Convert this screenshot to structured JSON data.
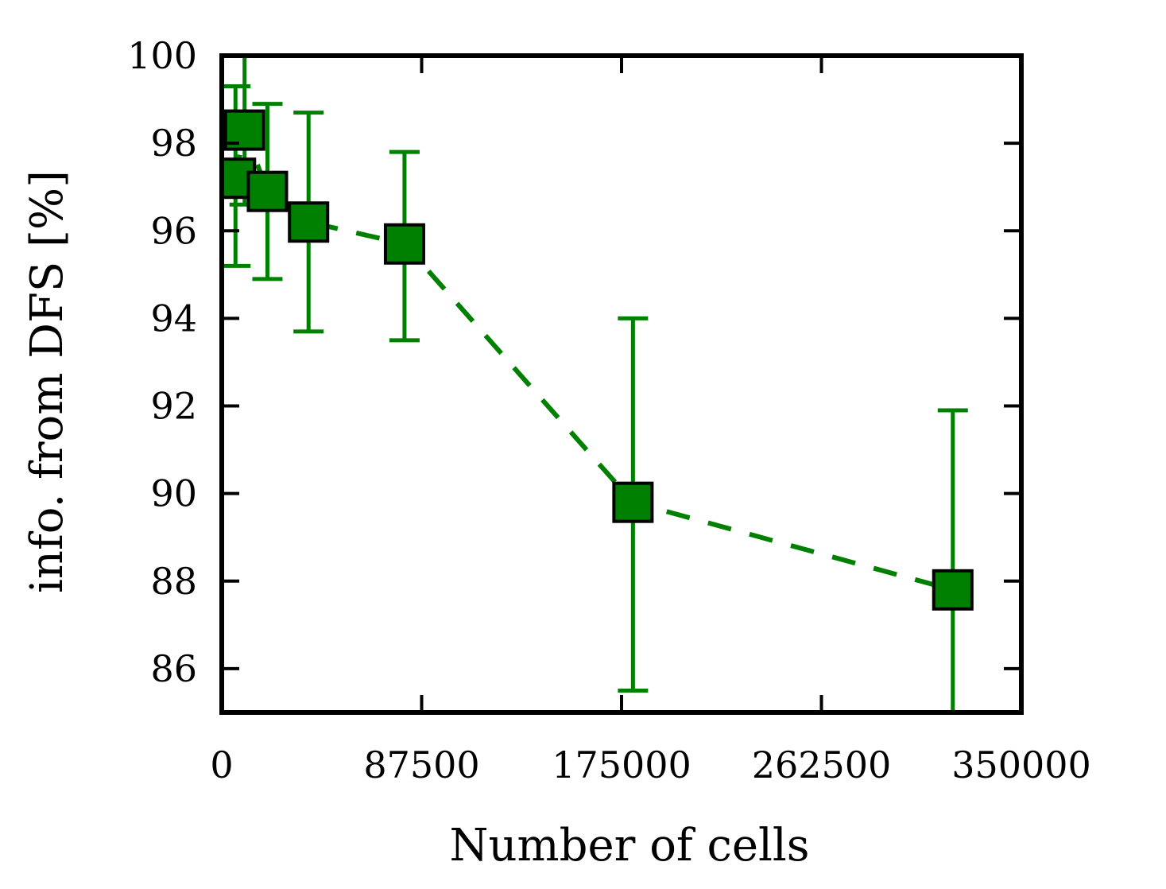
{
  "chart_data": {
    "type": "scatter",
    "title": "",
    "xlabel": "Number of cells",
    "ylabel": "info. from DFS [%]",
    "xlim": [
      0,
      350000
    ],
    "ylim": [
      85,
      100
    ],
    "xticks": [
      0,
      87500,
      175000,
      262500,
      350000
    ],
    "xtick_labels": [
      "0",
      "87500",
      "175000",
      "262500",
      "350000"
    ],
    "yticks": [
      86,
      88,
      90,
      92,
      94,
      96,
      98,
      100
    ],
    "ytick_labels": [
      "86",
      "88",
      "90",
      "92",
      "94",
      "96",
      "98",
      "100"
    ],
    "grid": false,
    "legend": null,
    "marker": "square",
    "line_style": "dashed",
    "color": "#008000",
    "marker_edge_color": "#000000",
    "series": [
      {
        "x": [
          6000,
          10000,
          20000,
          38000,
          80000,
          180000,
          320000
        ],
        "y": [
          97.2,
          98.3,
          96.9,
          96.2,
          95.7,
          89.8,
          87.8
        ],
        "yerr_low": [
          95.2,
          96.6,
          94.9,
          93.7,
          93.5,
          85.5,
          84.8
        ],
        "yerr_high": [
          99.3,
          100.0,
          98.9,
          98.7,
          97.8,
          94.0,
          91.9
        ]
      }
    ]
  }
}
